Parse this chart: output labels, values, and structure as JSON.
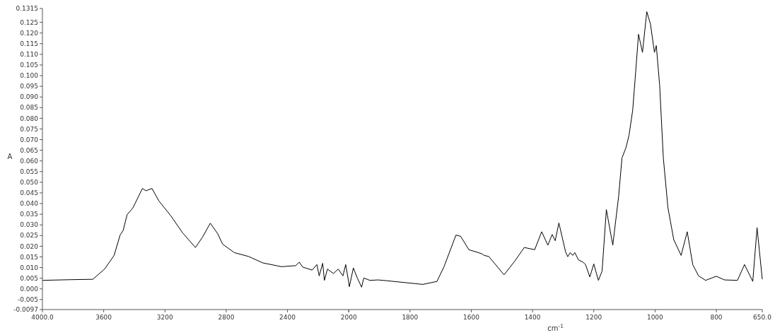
{
  "chart_data": [
    {
      "type": "line",
      "ylabel": "A",
      "xlim": [
        4000,
        2000
      ],
      "xticks": [
        {
          "value": 4000,
          "label": "4000.0"
        },
        3600,
        3200,
        2800,
        2400,
        2000
      ],
      "ylim": [
        -0.0097,
        0.1315
      ],
      "yticks": [
        {
          "value": -0.0097,
          "label": "-0.0097"
        },
        {
          "value": -0.005,
          "label": "-0.005"
        },
        {
          "value": 0,
          "label": "0.000"
        },
        {
          "value": 0.005,
          "label": "0.005"
        },
        {
          "value": 0.01,
          "label": "0.010"
        },
        {
          "value": 0.015,
          "label": "0.015"
        },
        {
          "value": 0.02,
          "label": "0.020"
        },
        {
          "value": 0.025,
          "label": "0.025"
        },
        {
          "value": 0.03,
          "label": "0.030"
        },
        {
          "value": 0.035,
          "label": "0.035"
        },
        {
          "value": 0.04,
          "label": "0.040"
        },
        {
          "value": 0.045,
          "label": "0.045"
        },
        {
          "value": 0.05,
          "label": "0.050"
        },
        {
          "value": 0.055,
          "label": "0.055"
        },
        {
          "value": 0.06,
          "label": "0.060"
        },
        {
          "value": 0.065,
          "label": "0.065"
        },
        {
          "value": 0.07,
          "label": "0.070"
        },
        {
          "value": 0.075,
          "label": "0.075"
        },
        {
          "value": 0.08,
          "label": "0.080"
        },
        {
          "value": 0.085,
          "label": "0.085"
        },
        {
          "value": 0.09,
          "label": "0.090"
        },
        {
          "value": 0.095,
          "label": "0.095"
        },
        {
          "value": 0.1,
          "label": "0.100"
        },
        {
          "value": 0.105,
          "label": "0.105"
        },
        {
          "value": 0.11,
          "label": "0.110"
        },
        {
          "value": 0.115,
          "label": "0.115"
        },
        {
          "value": 0.12,
          "label": "0.120"
        },
        {
          "value": 0.125,
          "label": "0.125"
        },
        {
          "value": 0.1315,
          "label": "0.1315"
        }
      ],
      "marker": "none",
      "line_style": "solid",
      "series": [
        {
          "color": "#000000",
          "x": [
            4000,
            3824,
            3671,
            3594,
            3532,
            3493,
            3473,
            3447,
            3409,
            3347,
            3324,
            3285,
            3239,
            3162,
            3085,
            3001,
            2955,
            2904,
            2855,
            2824,
            2747,
            2654,
            2562,
            2439,
            2346,
            2323,
            2300,
            2239,
            2208,
            2193,
            2170,
            2159,
            2139,
            2100,
            2069,
            2038,
            2020,
            2000
          ],
          "values": [
            0.004,
            0.0043,
            0.0045,
            0.0093,
            0.0157,
            0.0252,
            0.0274,
            0.0348,
            0.038,
            0.0471,
            0.046,
            0.0471,
            0.0412,
            0.0343,
            0.0263,
            0.0194,
            0.0242,
            0.0308,
            0.0258,
            0.021,
            0.017,
            0.0152,
            0.0122,
            0.0104,
            0.0109,
            0.0125,
            0.0102,
            0.0088,
            0.0114,
            0.0061,
            0.012,
            0.004,
            0.0093,
            0.0072,
            0.0093,
            0.0061,
            0.0114,
            0.003
          ]
        }
      ]
    },
    {
      "type": "line",
      "xlabel": "cm$^{-1}$",
      "tick_labels": "x",
      "xlim": [
        2000,
        650
      ],
      "xticks": [
        {
          "value": 2000,
          "label": null
        },
        1800,
        1600,
        1400,
        1200,
        1000,
        800,
        {
          "value": 650,
          "label": "650.0"
        }
      ],
      "ylim": [
        -0.0097,
        0.1315
      ],
      "marker": "none",
      "line_style": "solid",
      "series": [
        {
          "color": "#000000",
          "x": [
            2000,
            1998,
            1985,
            1972,
            1958,
            1951,
            1931,
            1904,
            1874,
            1758,
            1712,
            1689,
            1650,
            1635,
            1608,
            1566,
            1558,
            1543,
            1493,
            1458,
            1427,
            1393,
            1370,
            1350,
            1336,
            1326,
            1314,
            1292,
            1285,
            1277,
            1269,
            1262,
            1250,
            1235,
            1227,
            1213,
            1200,
            1185,
            1173,
            1159,
            1138,
            1119,
            1108,
            1095,
            1085,
            1073,
            1065,
            1054,
            1041,
            1027,
            1015,
            1002,
            996,
            985,
            973,
            958,
            939,
            915,
            895,
            877,
            858,
            835,
            800,
            773,
            731,
            708,
            681,
            667,
            650
          ],
          "values": [
            0.003,
            0.001,
            0.0098,
            0.0051,
            0.0008,
            0.0051,
            0.004,
            0.0042,
            0.0038,
            0.0021,
            0.0035,
            0.0104,
            0.0252,
            0.0247,
            0.0184,
            0.0165,
            0.0157,
            0.0152,
            0.0066,
            0.013,
            0.0194,
            0.0184,
            0.0268,
            0.0205,
            0.0255,
            0.0226,
            0.0309,
            0.0173,
            0.0151,
            0.017,
            0.0157,
            0.017,
            0.0136,
            0.0125,
            0.0114,
            0.0056,
            0.0117,
            0.004,
            0.0083,
            0.0372,
            0.0205,
            0.0433,
            0.0614,
            0.0662,
            0.072,
            0.0838,
            0.0986,
            0.1194,
            0.1109,
            0.13,
            0.1242,
            0.1109,
            0.1141,
            0.0955,
            0.0614,
            0.0381,
            0.0231,
            0.0157,
            0.0268,
            0.0114,
            0.0061,
            0.004,
            0.0059,
            0.0042,
            0.004,
            0.0114,
            0.0035,
            0.0287,
            0.0045
          ]
        }
      ]
    }
  ]
}
